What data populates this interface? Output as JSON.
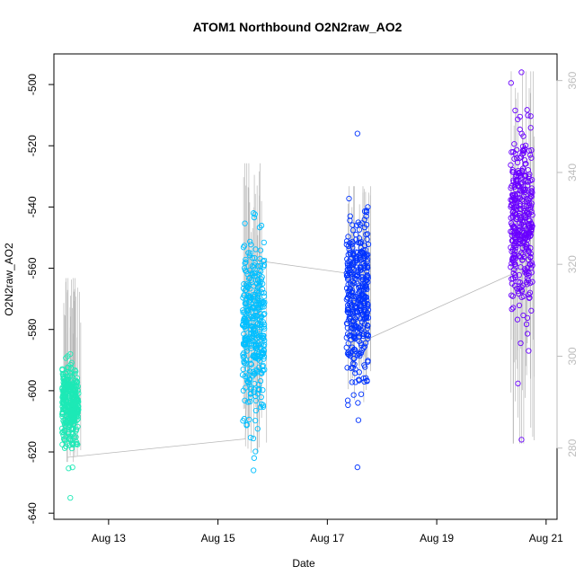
{
  "chart_data": {
    "type": "scatter",
    "title": "ATOM1 Northbound O2N2raw_AO2",
    "xlabel": "Date",
    "ylabel": "O2N2raw_AO2",
    "x_tick_labels": [
      "Aug 13",
      "Aug 15",
      "Aug 17",
      "Aug 19",
      "Aug 21"
    ],
    "x_tick_values": [
      13,
      15,
      17,
      19,
      21
    ],
    "xlim": [
      12.0,
      21.2
    ],
    "y_ticks": [
      -640,
      -620,
      -600,
      -580,
      -560,
      -540,
      -520,
      -500
    ],
    "ylim": [
      -642,
      -490
    ],
    "y2_ticks": [
      280,
      300,
      320,
      340,
      360
    ],
    "y2lim": [
      264.5,
      365.8
    ],
    "series": [
      {
        "color": "#1de9b6",
        "x_range": [
          12.15,
          12.45
        ],
        "y_center": -605,
        "y_sd": 6,
        "y_min": -635,
        "y_max": -588
      },
      {
        "color": "#00bfff",
        "x_range": [
          15.45,
          15.85
        ],
        "y_center": -580,
        "y_sd": 14,
        "y_min": -626,
        "y_max": -542
      },
      {
        "color": "#0033ff",
        "x_range": [
          17.35,
          17.75
        ],
        "y_center": -570,
        "y_sd": 14,
        "y_min": -625,
        "y_max": -516
      },
      {
        "color": "#6a00ff",
        "x_range": [
          20.35,
          20.75
        ],
        "y_center": -545,
        "y_sd": 14,
        "y_min": -616,
        "y_max": -496
      }
    ],
    "secondary_series": {
      "color": "#b8b8b8",
      "clusters": [
        {
          "x_range": [
            12.15,
            12.5
          ],
          "y_min": 277,
          "y_max": 317
        },
        {
          "x_range": [
            15.45,
            15.9
          ],
          "y_min": 279,
          "y_max": 342
        },
        {
          "x_range": [
            17.35,
            17.8
          ],
          "y_min": 290,
          "y_max": 337
        },
        {
          "x_range": [
            20.35,
            20.8
          ],
          "y_min": 281,
          "y_max": 362
        }
      ],
      "trend_x": [
        12.25,
        15.5,
        15.6,
        17.4,
        17.6,
        20.4
      ],
      "trend_y": [
        278,
        282,
        321,
        318,
        303,
        318
      ]
    }
  }
}
